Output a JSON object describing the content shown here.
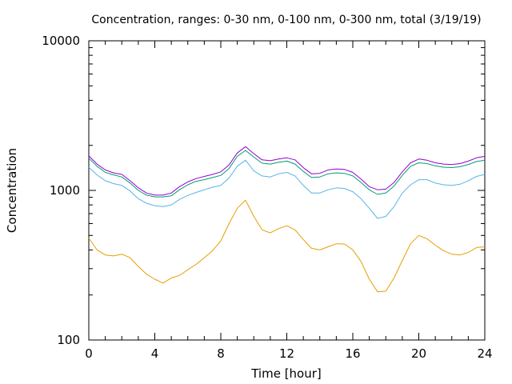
{
  "chart_data": {
    "type": "line",
    "title": "Concentration, ranges: 0-30 nm, 0-100 nm, 0-300 nm, total (3/19/19)",
    "xlabel": "Time [hour]",
    "ylabel": "Concentration",
    "xlim": [
      0,
      24
    ],
    "ylim": [
      100,
      10000
    ],
    "yscale": "log",
    "grid": false,
    "x_ticks": [
      "0",
      "4",
      "8",
      "12",
      "16",
      "20",
      "24"
    ],
    "y_ticks": [
      "100",
      "1000",
      "10000"
    ],
    "series": [
      {
        "color": "#E69F00",
        "x": [
          0,
          0.5,
          1,
          1.5,
          2,
          2.5,
          3,
          3.5,
          4,
          4.5,
          5,
          5.5,
          6,
          6.5,
          7,
          7.5,
          8,
          8.5,
          9,
          9.5,
          10,
          10.5,
          11,
          11.5,
          12,
          12.5,
          13,
          13.5,
          14,
          14.5,
          15,
          15.5,
          16,
          16.5,
          17,
          17.5,
          18,
          18.5,
          19,
          19.5,
          20,
          20.5,
          21,
          21.5,
          22,
          22.5,
          23,
          23.5,
          24
        ],
        "y": [
          480,
          400,
          370,
          365,
          375,
          355,
          310,
          275,
          255,
          240,
          260,
          270,
          295,
          320,
          355,
          395,
          460,
          600,
          760,
          860,
          670,
          545,
          520,
          555,
          580,
          545,
          470,
          410,
          400,
          420,
          440,
          438,
          400,
          335,
          255,
          210,
          212,
          260,
          340,
          440,
          500,
          475,
          430,
          395,
          375,
          370,
          385,
          415,
          420
        ]
      },
      {
        "color": "#56B4E9",
        "x": [
          0,
          0.5,
          1,
          1.5,
          2,
          2.5,
          3,
          3.5,
          4,
          4.5,
          5,
          5.5,
          6,
          6.5,
          7,
          7.5,
          8,
          8.5,
          9,
          9.5,
          10,
          10.5,
          11,
          11.5,
          12,
          12.5,
          13,
          13.5,
          14,
          14.5,
          15,
          15.5,
          16,
          16.5,
          17,
          17.5,
          18,
          18.5,
          19,
          19.5,
          20,
          20.5,
          21,
          21.5,
          22,
          22.5,
          23,
          23.5,
          24
        ],
        "y": [
          1430,
          1270,
          1160,
          1110,
          1080,
          990,
          880,
          820,
          790,
          780,
          800,
          870,
          925,
          970,
          1010,
          1050,
          1080,
          1210,
          1450,
          1590,
          1350,
          1250,
          1230,
          1290,
          1320,
          1250,
          1080,
          960,
          960,
          1010,
          1040,
          1030,
          980,
          880,
          760,
          650,
          670,
          780,
          960,
          1090,
          1180,
          1180,
          1120,
          1090,
          1080,
          1100,
          1160,
          1240,
          1280
        ]
      },
      {
        "color": "#009E73",
        "x": [
          0,
          0.5,
          1,
          1.5,
          2,
          2.5,
          3,
          3.5,
          4,
          4.5,
          5,
          5.5,
          6,
          6.5,
          7,
          7.5,
          8,
          8.5,
          9,
          9.5,
          10,
          10.5,
          11,
          11.5,
          12,
          12.5,
          13,
          13.5,
          14,
          14.5,
          15,
          15.5,
          16,
          16.5,
          17,
          17.5,
          18,
          18.5,
          19,
          19.5,
          20,
          20.5,
          21,
          21.5,
          22,
          22.5,
          23,
          23.5,
          24
        ],
        "y": [
          1640,
          1450,
          1320,
          1270,
          1230,
          1120,
          1000,
          930,
          905,
          905,
          920,
          1010,
          1090,
          1150,
          1180,
          1220,
          1260,
          1400,
          1690,
          1850,
          1670,
          1520,
          1500,
          1540,
          1570,
          1500,
          1340,
          1220,
          1230,
          1290,
          1310,
          1300,
          1250,
          1130,
          1010,
          940,
          960,
          1070,
          1260,
          1450,
          1530,
          1510,
          1460,
          1430,
          1420,
          1440,
          1490,
          1560,
          1590
        ]
      },
      {
        "color": "#9400D3",
        "x": [
          0,
          0.5,
          1,
          1.5,
          2,
          2.5,
          3,
          3.5,
          4,
          4.5,
          5,
          5.5,
          6,
          6.5,
          7,
          7.5,
          8,
          8.5,
          9,
          9.5,
          10,
          10.5,
          11,
          11.5,
          12,
          12.5,
          13,
          13.5,
          14,
          14.5,
          15,
          15.5,
          16,
          16.5,
          17,
          17.5,
          18,
          18.5,
          19,
          19.5,
          20,
          20.5,
          21,
          21.5,
          22,
          22.5,
          23,
          23.5,
          24
        ],
        "y": [
          1700,
          1500,
          1370,
          1310,
          1280,
          1160,
          1040,
          960,
          930,
          930,
          960,
          1060,
          1140,
          1200,
          1240,
          1280,
          1330,
          1480,
          1780,
          1960,
          1760,
          1600,
          1580,
          1620,
          1650,
          1600,
          1420,
          1290,
          1300,
          1370,
          1390,
          1380,
          1320,
          1190,
          1060,
          1010,
          1020,
          1130,
          1330,
          1530,
          1620,
          1590,
          1530,
          1500,
          1490,
          1510,
          1570,
          1650,
          1690
        ]
      }
    ]
  }
}
